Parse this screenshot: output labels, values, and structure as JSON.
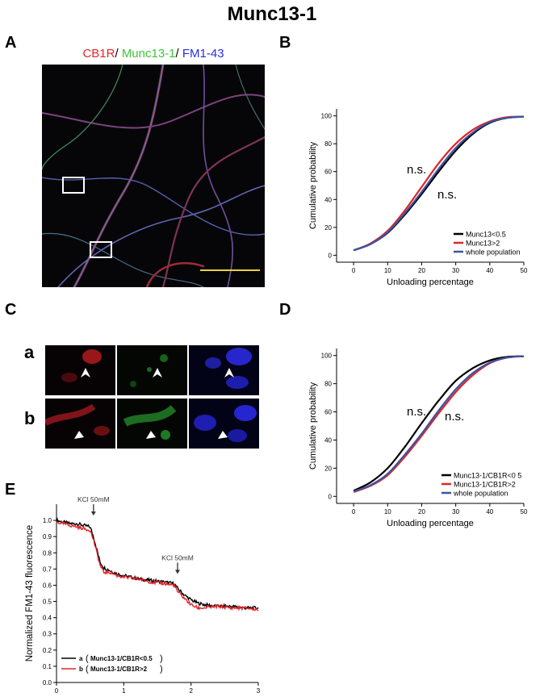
{
  "figure_title": "Munc13-1",
  "panels": {
    "A": {
      "letter": "A",
      "stain_labels": [
        {
          "text": "CB1R",
          "color": "#e8252a"
        },
        {
          "text": "/ ",
          "color": "#000000"
        },
        {
          "text": "Munc13-1",
          "color": "#3ec437"
        },
        {
          "text": "/ ",
          "color": "#000000"
        },
        {
          "text": "FM1-43",
          "color": "#2b2ee0"
        }
      ]
    },
    "B": {
      "letter": "B"
    },
    "C": {
      "letter": "C",
      "rows": [
        "a",
        "b"
      ]
    },
    "D": {
      "letter": "D"
    },
    "E": {
      "letter": "E"
    }
  },
  "colors": {
    "black": "#000000",
    "red": "#e0242a",
    "blue": "#3a55a4"
  },
  "chart_data": [
    {
      "id": "B",
      "type": "line",
      "xlabel": "Unloading percentage",
      "ylabel": "Cumulative probability",
      "xlim": [
        -5,
        50
      ],
      "ylim": [
        -5,
        105
      ],
      "xticks": [
        0,
        10,
        20,
        30,
        40,
        50
      ],
      "yticks": [
        0,
        20,
        40,
        60,
        80,
        100
      ],
      "grid": false,
      "legend_position": "bottom-right",
      "annotations": [
        "n.s.",
        "n.s."
      ],
      "series": [
        {
          "name": "Munc13<0.5",
          "color": "#000000",
          "x": [
            0,
            5,
            10,
            15,
            20,
            25,
            30,
            35,
            40,
            45,
            50
          ],
          "y": [
            3.5,
            8,
            16,
            29,
            44,
            60,
            75,
            87,
            95,
            98.5,
            99.5
          ]
        },
        {
          "name": "Munc13>2",
          "color": "#e0242a",
          "x": [
            0,
            5,
            10,
            15,
            20,
            25,
            30,
            35,
            40,
            45,
            50
          ],
          "y": [
            3.5,
            8.5,
            17.5,
            32,
            49,
            66,
            80,
            90,
            96,
            99,
            99.5
          ]
        },
        {
          "name": "whole population",
          "color": "#3a55a4",
          "x": [
            0,
            5,
            10,
            15,
            20,
            25,
            30,
            35,
            40,
            45,
            50
          ],
          "y": [
            3.5,
            8,
            16.5,
            30,
            45.5,
            62,
            77,
            88,
            95.5,
            98.5,
            99.5
          ]
        }
      ]
    },
    {
      "id": "D",
      "type": "line",
      "xlabel": "Unloading percentage",
      "ylabel": "Cumulative probability",
      "xlim": [
        -5,
        50
      ],
      "ylim": [
        -5,
        105
      ],
      "xticks": [
        0,
        10,
        20,
        30,
        40,
        50
      ],
      "yticks": [
        0,
        20,
        40,
        60,
        80,
        100
      ],
      "grid": false,
      "legend_position": "bottom-right",
      "annotations": [
        "n.s.",
        "n.s."
      ],
      "series": [
        {
          "name": "Munc13-1/CB1R<0 5",
          "color": "#000000",
          "x": [
            0,
            5,
            10,
            15,
            20,
            25,
            30,
            35,
            40,
            45,
            50
          ],
          "y": [
            4,
            10,
            20,
            35,
            52,
            68,
            82,
            91,
            96.5,
            99,
            99.5
          ]
        },
        {
          "name": "Munc13-1/CB1R>2",
          "color": "#e0242a",
          "x": [
            0,
            5,
            10,
            15,
            20,
            25,
            30,
            35,
            40,
            45,
            50
          ],
          "y": [
            3,
            7.5,
            15,
            28,
            43,
            59,
            74,
            86,
            94.5,
            98.5,
            99.5
          ]
        },
        {
          "name": "whole population",
          "color": "#3a55a4",
          "x": [
            0,
            5,
            10,
            15,
            20,
            25,
            30,
            35,
            40,
            45,
            50
          ],
          "y": [
            3.5,
            8,
            16,
            29.5,
            44.5,
            61,
            76,
            87.5,
            95,
            98.5,
            99.5
          ]
        }
      ]
    },
    {
      "id": "E",
      "type": "line",
      "xlabel": "Time (min)",
      "ylabel": "Normalized FM1-43 fluorescence",
      "xlim": [
        0,
        3
      ],
      "ylim": [
        0,
        1.1
      ],
      "xticks": [
        0,
        1,
        2,
        3
      ],
      "yticks": [
        0,
        0.1,
        0.2,
        0.3,
        0.4,
        0.5,
        0.6,
        0.7,
        0.8,
        0.9,
        1.0
      ],
      "grid": false,
      "legend_position": "bottom-left",
      "annotations": [
        {
          "text": "KCl 50mM",
          "x": 0.55
        },
        {
          "text": "KCl 50mM",
          "x": 1.8
        }
      ],
      "series": [
        {
          "name": "a",
          "label": "Munc13-1/CB1R<0.5",
          "color": "#000000",
          "x": [
            0,
            0.1,
            0.2,
            0.3,
            0.4,
            0.5,
            0.55,
            0.6,
            0.65,
            0.7,
            0.8,
            0.9,
            1.0,
            1.2,
            1.4,
            1.6,
            1.75,
            1.8,
            1.9,
            2.0,
            2.1,
            2.2,
            2.4,
            2.6,
            2.8,
            3.0
          ],
          "y": [
            1.0,
            0.99,
            0.98,
            0.98,
            0.97,
            0.96,
            0.9,
            0.82,
            0.74,
            0.71,
            0.69,
            0.67,
            0.66,
            0.64,
            0.63,
            0.62,
            0.61,
            0.58,
            0.54,
            0.51,
            0.49,
            0.48,
            0.47,
            0.47,
            0.46,
            0.46
          ]
        },
        {
          "name": "b",
          "label": "Munc13-1/CB1R>2",
          "color": "#e0242a",
          "x": [
            0,
            0.1,
            0.2,
            0.3,
            0.4,
            0.5,
            0.55,
            0.6,
            0.65,
            0.7,
            0.8,
            0.9,
            1.0,
            1.2,
            1.4,
            1.6,
            1.75,
            1.8,
            1.9,
            2.0,
            2.1,
            2.2,
            2.4,
            2.6,
            2.8,
            3.0
          ],
          "y": [
            0.99,
            0.98,
            0.97,
            0.96,
            0.95,
            0.94,
            0.88,
            0.8,
            0.72,
            0.68,
            0.68,
            0.66,
            0.65,
            0.64,
            0.62,
            0.61,
            0.6,
            0.56,
            0.52,
            0.48,
            0.46,
            0.46,
            0.47,
            0.46,
            0.46,
            0.45
          ]
        }
      ]
    }
  ]
}
